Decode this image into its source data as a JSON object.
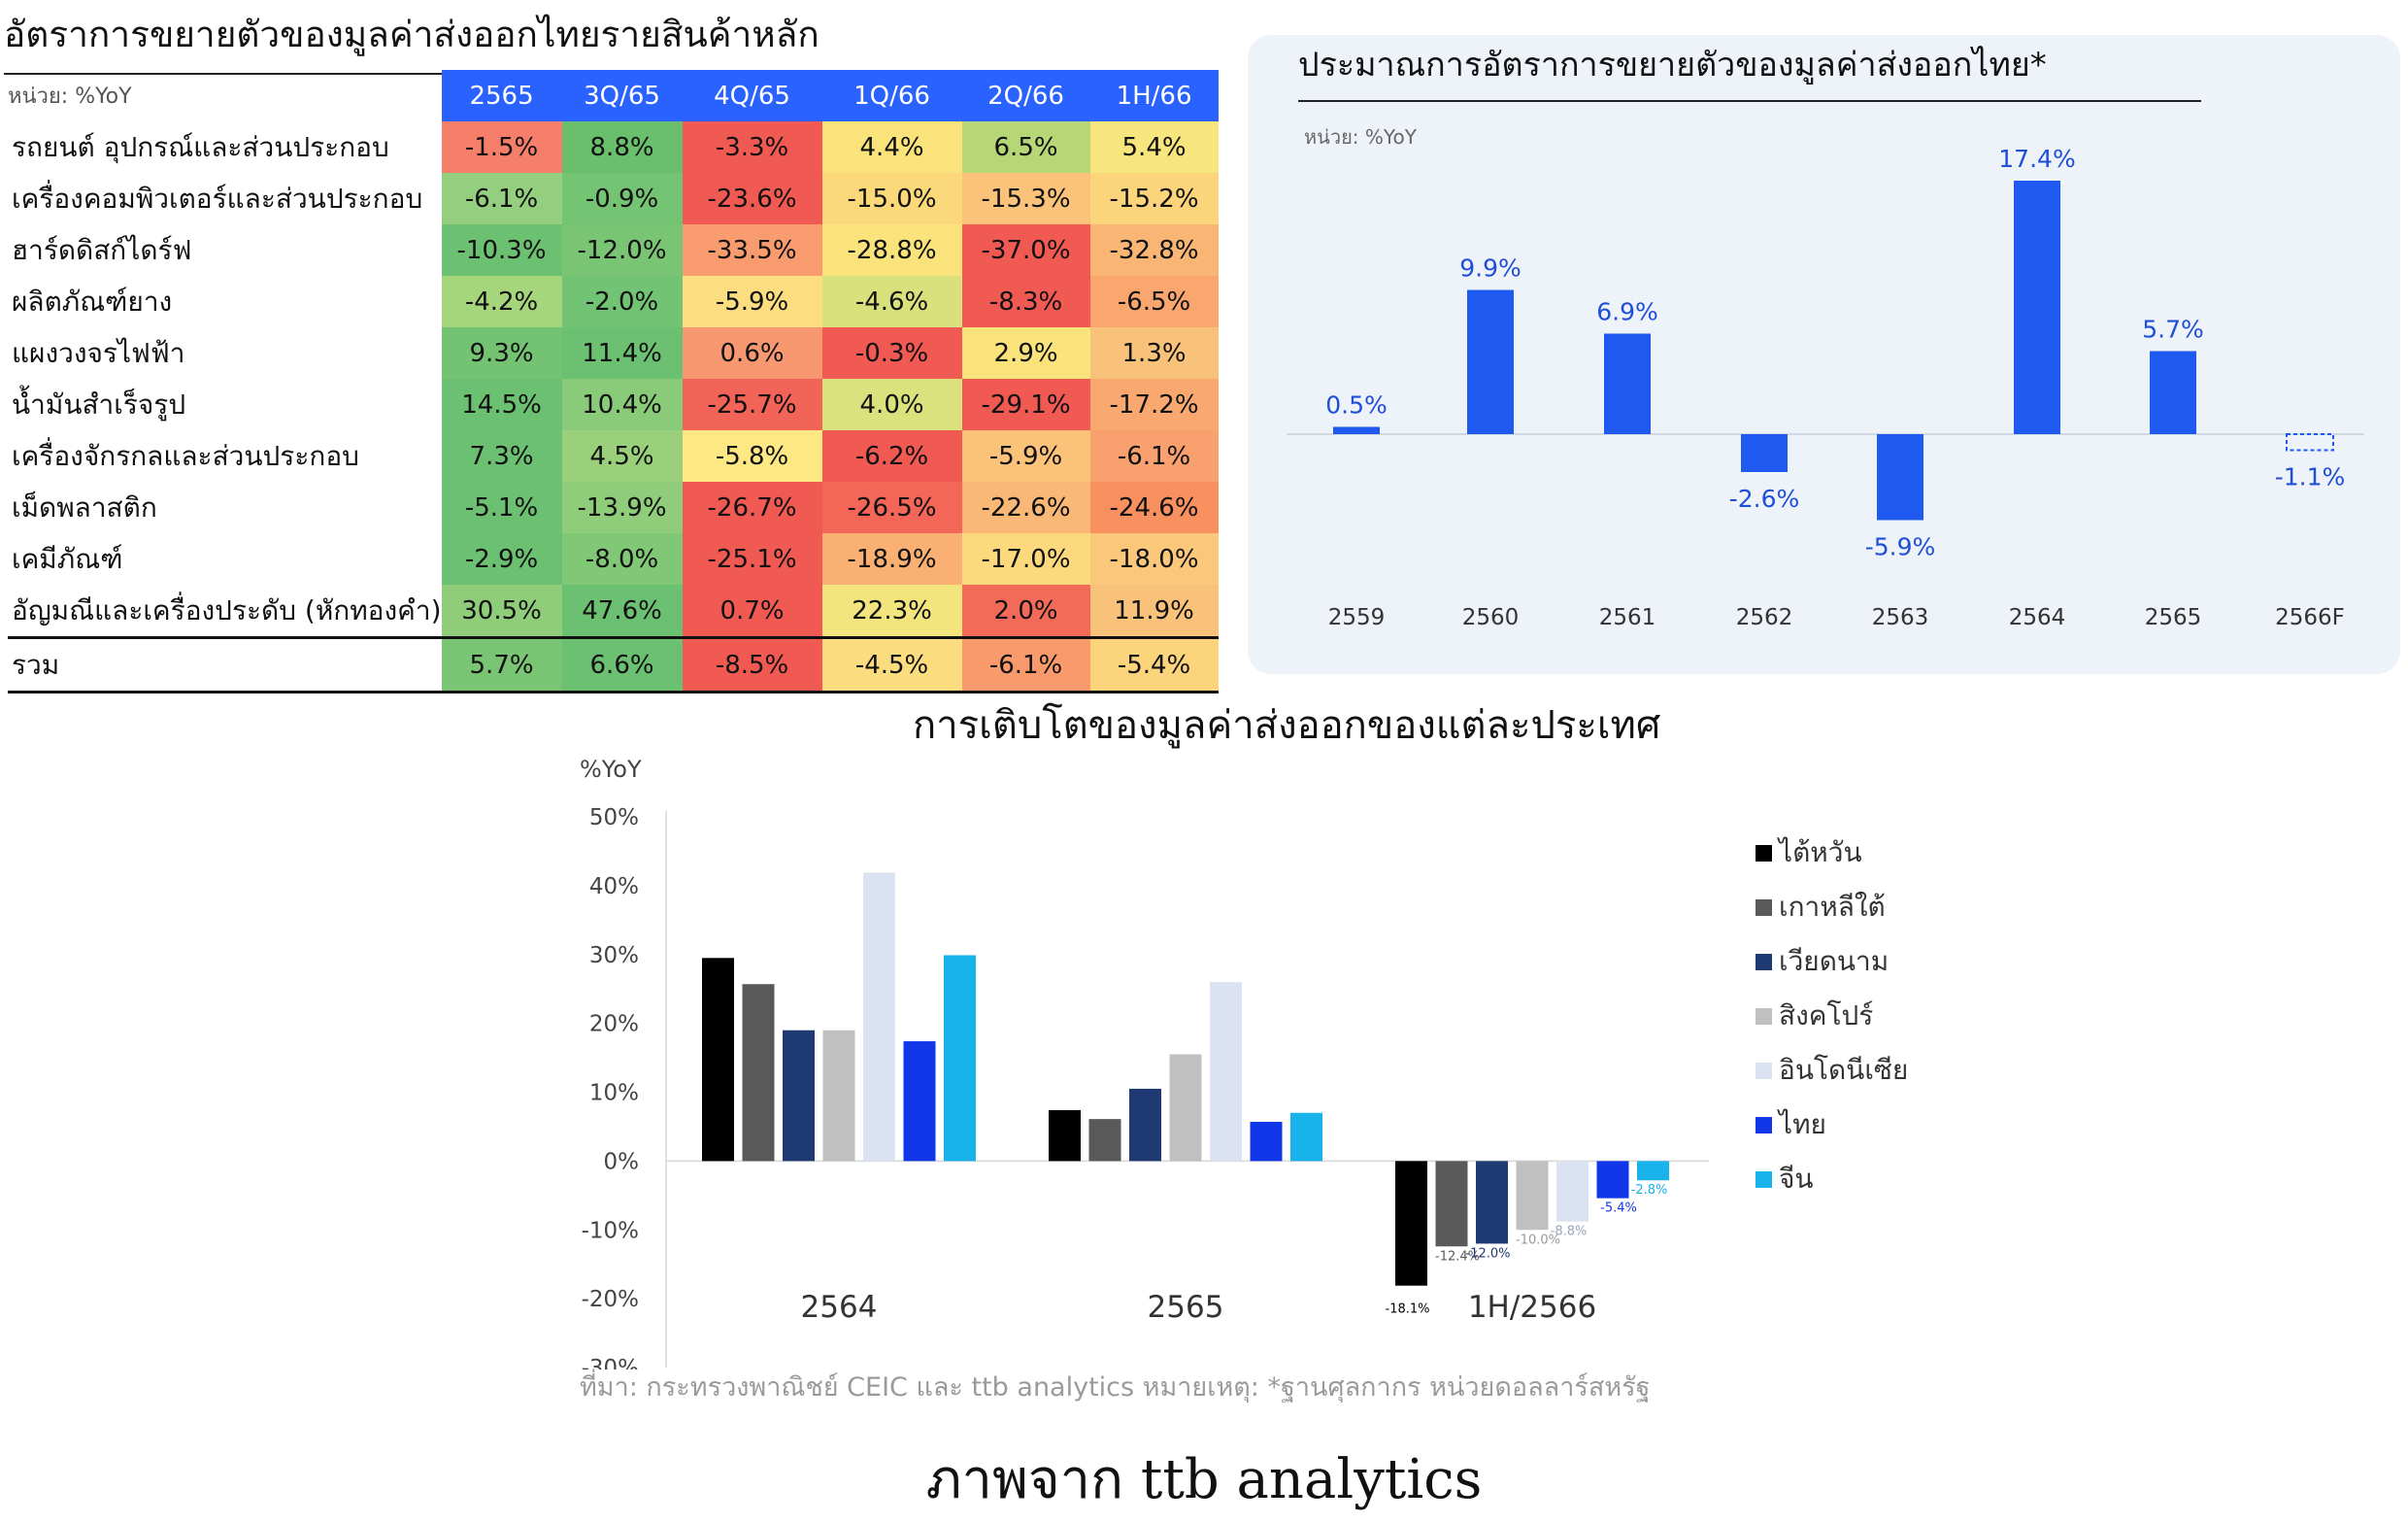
{
  "table": {
    "title": "อัตราการขยายตัวของมูลค่าส่งออกไทยรายสินค้าหลัก",
    "unit": "หน่วย: %YoY",
    "columns": [
      "2565",
      "3Q/65",
      "4Q/65",
      "1Q/66",
      "2Q/66",
      "1H/66"
    ],
    "rows": [
      {
        "label": "รถยนต์ อุปกรณ์และส่วนประกอบ",
        "values": [
          "-1.5%",
          "8.8%",
          "-3.3%",
          "4.4%",
          "6.5%",
          "5.4%"
        ],
        "colors": [
          "#f57f6a",
          "#69bf6c",
          "#f15a52",
          "#f9e37a",
          "#b7d777",
          "#f7e57e"
        ]
      },
      {
        "label": "เครื่องคอมพิวเตอร์และส่วนประกอบ",
        "values": [
          "-6.1%",
          "-0.9%",
          "-23.6%",
          "-15.0%",
          "-15.3%",
          "-15.2%"
        ],
        "colors": [
          "#93cf7e",
          "#75c474",
          "#f15a52",
          "#fbd97b",
          "#fbc37a",
          "#fbd47b"
        ]
      },
      {
        "label": "ฮาร์ดดิสก์ไดร์ฟ",
        "values": [
          "-10.3%",
          "-12.0%",
          "-33.5%",
          "-28.8%",
          "-37.0%",
          "-32.8%"
        ],
        "colors": [
          "#6cc071",
          "#7ac574",
          "#f89c6f",
          "#f9e37a",
          "#f15a52",
          "#f9b574"
        ]
      },
      {
        "label": "ผลิตภัณฑ์ยาง",
        "values": [
          "-4.2%",
          "-2.0%",
          "-5.9%",
          "-4.6%",
          "-8.3%",
          "-6.5%"
        ],
        "colors": [
          "#a6d67c",
          "#72c373",
          "#fcdd80",
          "#d8e17c",
          "#f15a52",
          "#f9a66f"
        ]
      },
      {
        "label": "แผงวงจรไฟฟ้า",
        "values": [
          "9.3%",
          "11.4%",
          "0.6%",
          "-0.3%",
          "2.9%",
          "1.3%"
        ],
        "colors": [
          "#73c373",
          "#6cc071",
          "#f89870",
          "#f15a52",
          "#f9e37a",
          "#f9c27a"
        ]
      },
      {
        "label": "น้ำมันสำเร็จรูป",
        "values": [
          "14.5%",
          "10.4%",
          "-25.7%",
          "4.0%",
          "-29.1%",
          "-17.2%"
        ],
        "colors": [
          "#6cc071",
          "#8acb79",
          "#f26457",
          "#d9e27c",
          "#f15a52",
          "#f9a970"
        ]
      },
      {
        "label": "เครื่องจักรกลและส่วนประกอบ",
        "values": [
          "7.3%",
          "4.5%",
          "-5.8%",
          "-6.2%",
          "-5.9%",
          "-6.1%"
        ],
        "colors": [
          "#6cc071",
          "#9ad07c",
          "#fde883",
          "#f15a52",
          "#fbc37a",
          "#f9a06f"
        ]
      },
      {
        "label": "เม็ดพลาสติก",
        "values": [
          "-5.1%",
          "-13.9%",
          "-26.7%",
          "-26.5%",
          "-22.6%",
          "-24.6%"
        ],
        "colors": [
          "#6cc071",
          "#8fcd7a",
          "#f15a52",
          "#f46758",
          "#f9b876",
          "#f8905f"
        ]
      },
      {
        "label": "เคมีภัณฑ์",
        "values": [
          "-2.9%",
          "-8.0%",
          "-25.1%",
          "-18.9%",
          "-17.0%",
          "-18.0%"
        ],
        "colors": [
          "#6cc071",
          "#80c776",
          "#f15a52",
          "#f9b072",
          "#fcd97d",
          "#fbc77a"
        ]
      },
      {
        "label": "อัญมณีและเครื่องประดับ (หักทองคำ)",
        "values": [
          "30.5%",
          "47.6%",
          "0.7%",
          "22.3%",
          "2.0%",
          "11.9%"
        ],
        "colors": [
          "#90cd7a",
          "#6cc071",
          "#f15a52",
          "#f2e57e",
          "#f36a59",
          "#f9c27a"
        ]
      }
    ],
    "total": {
      "label": "รวม",
      "values": [
        "5.7%",
        "6.6%",
        "-8.5%",
        "-4.5%",
        "-6.1%",
        "-5.4%"
      ],
      "colors": [
        "#7ac574",
        "#6cc071",
        "#f15a52",
        "#fbdd80",
        "#f99a6c",
        "#fbd47b"
      ]
    }
  },
  "annual": {
    "title": "ประมาณการอัตราการขยายตัวของมูลค่าส่งออกไทย*",
    "unit": "หน่วย: %YoY",
    "bar_color": "#1f5af0",
    "chart_data": {
      "type": "bar",
      "categories": [
        "2559",
        "2560",
        "2561",
        "2562",
        "2563",
        "2564",
        "2565",
        "2566F"
      ],
      "values": [
        0.5,
        9.9,
        6.9,
        -2.6,
        -5.9,
        17.4,
        5.7,
        -1.1
      ],
      "labels": [
        "0.5%",
        "9.9%",
        "6.9%",
        "-2.6%",
        "-5.9%",
        "17.4%",
        "5.7%",
        "-1.1%"
      ],
      "forecast_index": 7,
      "xlabel": "",
      "ylabel": "",
      "grid": false
    }
  },
  "country": {
    "title": "การเติบโตของมูลค่าส่งออกของแต่ละประเทศ",
    "ylabel": "%YoY",
    "chart_data": {
      "type": "bar",
      "categories": [
        "2564",
        "2565",
        "1H/2566"
      ],
      "ylim": [
        -30,
        50
      ],
      "yticks": [
        "50%",
        "40%",
        "30%",
        "20%",
        "10%",
        "0%",
        "-10%",
        "-20%",
        "-30%"
      ],
      "ytick_values": [
        50,
        40,
        30,
        20,
        10,
        0,
        -10,
        -20,
        -30
      ],
      "legend_position": "right",
      "series": [
        {
          "name": "ไต้หวัน",
          "color": "#000000",
          "values": [
            29.5,
            7.4,
            -18.1
          ],
          "labels": [
            "",
            "",
            "-18.1%"
          ]
        },
        {
          "name": "เกาหลีใต้",
          "color": "#595959",
          "values": [
            25.7,
            6.1,
            -12.4
          ],
          "labels": [
            "",
            "",
            "-12.4%"
          ]
        },
        {
          "name": "เวียดนาม",
          "color": "#1f3a73",
          "values": [
            19.0,
            10.5,
            -12.0
          ],
          "labels": [
            "",
            "",
            "-12.0%"
          ]
        },
        {
          "name": "สิงคโปร์",
          "color": "#c0c0c0",
          "values": [
            19.0,
            15.5,
            -10.0
          ],
          "labels": [
            "",
            "",
            "-10.0%"
          ]
        },
        {
          "name": "อินโดนีเซีย",
          "color": "#dbe3f3",
          "values": [
            41.9,
            26.0,
            -8.8
          ],
          "labels": [
            "",
            "",
            "-8.8%"
          ]
        },
        {
          "name": "ไทย",
          "color": "#1237e8",
          "values": [
            17.4,
            5.7,
            -5.4
          ],
          "labels": [
            "",
            "",
            "-5.4%"
          ]
        },
        {
          "name": "จีน",
          "color": "#18b3ea",
          "values": [
            29.9,
            7.0,
            -2.8
          ],
          "labels": [
            "",
            "",
            "-2.8%"
          ]
        }
      ]
    }
  },
  "source_note": "ที่มา: กระทรวงพาณิชย์ CEIC และ ttb analytics  หมายเหตุ: *ฐานศุลกากร หน่วยดอลลาร์สหรัฐ",
  "caption": "ภาพจาก ttb analytics"
}
